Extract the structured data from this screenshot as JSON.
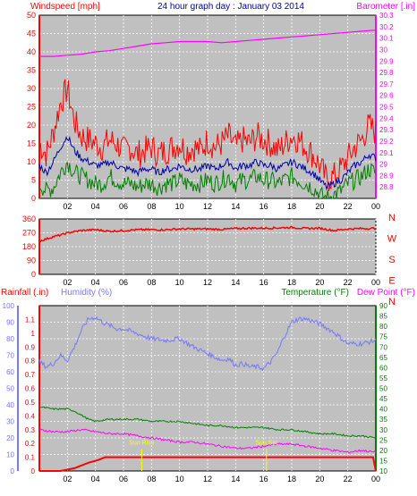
{
  "header": {
    "left_label": "Windspeed [mph]",
    "center_title": "24 hour graph day : January 03 2014",
    "right_label": "Barometer [.in]"
  },
  "colors": {
    "wind_gust": "#ff0000",
    "wind_avg": "#0000aa",
    "wind_low": "#008000",
    "barometer": "#ff00ff",
    "wind_direction": "#ff0000",
    "humidity": "#7777ff",
    "temperature": "#008000",
    "dew_point": "#ff00ff",
    "rainfall": "#ff0000",
    "sun_marker": "#ffff00",
    "plot_bg": "#c0c0c0"
  },
  "x_ticks": [
    "02",
    "04",
    "06",
    "08",
    "10",
    "12",
    "14",
    "16",
    "18",
    "20",
    "22",
    "00"
  ],
  "chart_data": [
    {
      "type": "line",
      "title": "24 hour graph day : January 03 2014",
      "xlabel": "",
      "ylabel_left": "Windspeed [mph]",
      "ylabel_right": "Barometer [.in]",
      "x_unit": "hour of day",
      "xlim": [
        0,
        24
      ],
      "ylim_left": [
        0,
        50
      ],
      "ylim_right": [
        28.7,
        30.3
      ],
      "yticks_left": [
        0,
        5,
        10,
        15,
        20,
        25,
        30,
        35,
        40,
        45,
        50
      ],
      "yticks_right": [
        "28.8",
        "28.9",
        "29",
        "29.1",
        "29.2",
        "29.3",
        "29.4",
        "29.5",
        "29.6",
        "29.7",
        "29.8",
        "29.9",
        "30",
        "30.1",
        "30.2",
        "30.3"
      ],
      "grid": true,
      "series": [
        {
          "name": "",
          "axis": "left",
          "x": [
            0,
            0.5,
            1,
            1.5,
            2,
            2.5,
            3,
            3.5,
            4,
            4.5,
            5,
            5.5,
            6,
            6.5,
            7,
            7.5,
            8,
            8.5,
            9,
            9.5,
            10,
            10.5,
            11,
            11.5,
            12,
            12.5,
            13,
            13.5,
            14,
            14.5,
            15,
            15.5,
            16,
            16.5,
            17,
            17.5,
            18,
            18.5,
            19,
            19.5,
            20,
            20.5,
            21,
            21.5,
            22,
            22.5,
            23,
            23.5,
            24
          ],
          "values": [
            15,
            12,
            18,
            26,
            30,
            21,
            17,
            16,
            15,
            14,
            16,
            15,
            13,
            14,
            12,
            13,
            14,
            12,
            13,
            14,
            15,
            13,
            14,
            13,
            16,
            14,
            15,
            17,
            14,
            16,
            15,
            17,
            16,
            15,
            13,
            15,
            17,
            16,
            14,
            12,
            9,
            5,
            6,
            8,
            11,
            14,
            16,
            20,
            18
          ]
        },
        {
          "name": "",
          "axis": "left",
          "x": [
            0,
            0.5,
            1,
            1.5,
            2,
            2.5,
            3,
            3.5,
            4,
            4.5,
            5,
            5.5,
            6,
            6.5,
            7,
            7.5,
            8,
            8.5,
            9,
            9.5,
            10,
            10.5,
            11,
            11.5,
            12,
            12.5,
            13,
            13.5,
            14,
            14.5,
            15,
            15.5,
            16,
            16.5,
            17,
            17.5,
            18,
            18.5,
            19,
            19.5,
            20,
            20.5,
            21,
            21.5,
            22,
            22.5,
            23,
            23.5,
            24
          ],
          "values": [
            9,
            7,
            10,
            14,
            17,
            13,
            11,
            10,
            9,
            9,
            10,
            9,
            8,
            8,
            7,
            8,
            8,
            7,
            8,
            8,
            9,
            8,
            8,
            8,
            9,
            8,
            9,
            10,
            8,
            9,
            9,
            10,
            9,
            9,
            8,
            9,
            10,
            9,
            8,
            7,
            5,
            3,
            4,
            5,
            7,
            9,
            10,
            12,
            11
          ]
        },
        {
          "name": "",
          "axis": "left",
          "x": [
            0,
            0.5,
            1,
            1.5,
            2,
            2.5,
            3,
            3.5,
            4,
            4.5,
            5,
            5.5,
            6,
            6.5,
            7,
            7.5,
            8,
            8.5,
            9,
            9.5,
            10,
            10.5,
            11,
            11.5,
            12,
            12.5,
            13,
            13.5,
            14,
            14.5,
            15,
            15.5,
            16,
            16.5,
            17,
            17.5,
            18,
            18.5,
            19,
            19.5,
            20,
            20.5,
            21,
            21.5,
            22,
            22.5,
            23,
            23.5,
            24
          ],
          "values": [
            4,
            2,
            3,
            7,
            10,
            7,
            6,
            5,
            4,
            4,
            6,
            5,
            4,
            4,
            3,
            4,
            4,
            3,
            4,
            4,
            5,
            4,
            4,
            4,
            5,
            4,
            5,
            6,
            4,
            5,
            5,
            6,
            5,
            5,
            4,
            5,
            6,
            5,
            4,
            3,
            1,
            0,
            1,
            2,
            4,
            5,
            6,
            8,
            7
          ]
        },
        {
          "name": "",
          "axis": "right",
          "x": [
            0,
            1,
            2,
            3,
            4,
            5,
            6,
            7,
            8,
            9,
            10,
            11,
            12,
            13,
            14,
            15,
            16,
            17,
            18,
            19,
            20,
            21,
            22,
            23,
            24
          ],
          "values": [
            29.94,
            29.94,
            29.95,
            29.96,
            29.98,
            29.99,
            30.01,
            30.03,
            30.05,
            30.06,
            30.07,
            30.07,
            30.07,
            30.06,
            30.07,
            30.08,
            30.09,
            30.1,
            30.11,
            30.12,
            30.13,
            30.14,
            30.15,
            30.16,
            30.17
          ]
        }
      ]
    },
    {
      "type": "line",
      "title": "",
      "xlabel": "",
      "ylabel": "",
      "x_unit": "hour of day",
      "xlim": [
        0,
        24
      ],
      "ylim": [
        0,
        360
      ],
      "yticks": [
        0,
        90,
        180,
        270,
        360
      ],
      "direction_labels": [
        "N",
        "W",
        "S",
        "E",
        "N"
      ],
      "grid": true,
      "series": [
        {
          "name": "",
          "x": [
            0,
            0.5,
            1,
            1.5,
            2,
            3,
            4,
            5,
            6,
            7,
            8,
            9,
            10,
            11,
            12,
            13,
            14,
            15,
            16,
            17,
            18,
            19,
            20,
            21,
            22,
            23,
            24
          ],
          "values": [
            215,
            230,
            245,
            255,
            270,
            285,
            290,
            280,
            285,
            290,
            290,
            290,
            295,
            295,
            295,
            292,
            298,
            300,
            300,
            302,
            305,
            298,
            300,
            285,
            295,
            298,
            298
          ]
        }
      ]
    },
    {
      "type": "line",
      "title": "",
      "xlabel": "",
      "ylabel_left": "Rainfall (.in)",
      "ylabel_left2": "Humidity (%)",
      "ylabel_right": "Temperature (°F)",
      "ylabel_right2": "Dew Point (°F)",
      "x_unit": "hour of day",
      "xlim": [
        0,
        24
      ],
      "ylim_humidity": [
        0,
        100
      ],
      "ylim_rain": [
        0,
        1.2
      ],
      "ylim_temp": [
        10,
        90
      ],
      "yticks_humidity": [
        0,
        10,
        20,
        30,
        40,
        50,
        60,
        70,
        80,
        90,
        100
      ],
      "yticks_rain": [
        "0",
        "0.1",
        "0.2",
        "0.3",
        "0.4",
        "0.5",
        "0.6",
        "0.7",
        "0.8",
        "0.9",
        "1",
        "1.1"
      ],
      "yticks_temp": [
        10,
        15,
        20,
        25,
        30,
        35,
        40,
        45,
        50,
        55,
        60,
        65,
        70,
        75,
        80,
        85,
        90
      ],
      "grid": true,
      "annotations": [
        {
          "text": "Sun Rise",
          "x": 7.3
        },
        {
          "text": "Sun Set",
          "x": 16.2
        }
      ],
      "series": [
        {
          "name": "Humidity (%)",
          "axis": "humidity",
          "x": [
            0,
            0.5,
            1,
            1.5,
            2,
            2.5,
            3,
            3.5,
            4,
            4.5,
            5,
            5.5,
            6,
            7,
            8,
            9,
            10,
            11,
            12,
            12.5,
            13,
            13.5,
            14,
            14.5,
            15,
            15.5,
            16,
            16.5,
            17,
            17.5,
            18,
            18.5,
            19,
            20,
            21,
            22,
            23,
            24
          ],
          "values": [
            66,
            63,
            65,
            70,
            67,
            75,
            85,
            92,
            93,
            90,
            88,
            86,
            86,
            83,
            80,
            79,
            80,
            75,
            71,
            69,
            67,
            68,
            64,
            65,
            63,
            63,
            62,
            66,
            72,
            82,
            90,
            92,
            92,
            89,
            84,
            77,
            77,
            79
          ]
        },
        {
          "name": "Temperature (°F)",
          "axis": "temp",
          "x": [
            0,
            1,
            2,
            2.5,
            3,
            3.5,
            4,
            5,
            6,
            7,
            8,
            9,
            10,
            11,
            12,
            13,
            14,
            15,
            16,
            17,
            18,
            19,
            20,
            21,
            22,
            23,
            24
          ],
          "values": [
            41,
            40,
            40,
            39,
            37,
            35,
            34,
            35,
            35,
            35,
            34,
            34,
            34,
            33,
            32,
            32,
            31,
            31,
            31,
            30,
            30,
            29,
            28,
            28,
            27,
            27,
            26
          ]
        },
        {
          "name": "Dew Point (°F)",
          "axis": "temp",
          "x": [
            0,
            1,
            2,
            3,
            4,
            5,
            6,
            7,
            8,
            9,
            10,
            11,
            12,
            13,
            14,
            15,
            16,
            17,
            18,
            19,
            20,
            21,
            22,
            23,
            24
          ],
          "values": [
            30,
            29,
            29,
            30,
            29,
            28,
            28,
            27,
            26,
            25,
            24,
            24,
            23,
            22,
            21,
            21,
            22,
            23,
            23,
            22,
            21,
            20,
            19,
            20,
            19
          ]
        },
        {
          "name": "Rainfall (.in)",
          "axis": "rain",
          "x": [
            0,
            1.5,
            2.5,
            3.5,
            4.2,
            4.7,
            23.8,
            24
          ],
          "values": [
            0,
            0,
            0.02,
            0.06,
            0.08,
            0.1,
            0.1,
            0
          ]
        }
      ]
    }
  ],
  "bottom_labels": {
    "rainfall": "Rainfall (.in)",
    "humidity": "Humidity (%)",
    "temperature": "Temperature (°F)",
    "dew_point": "Dew Point (°F)"
  }
}
